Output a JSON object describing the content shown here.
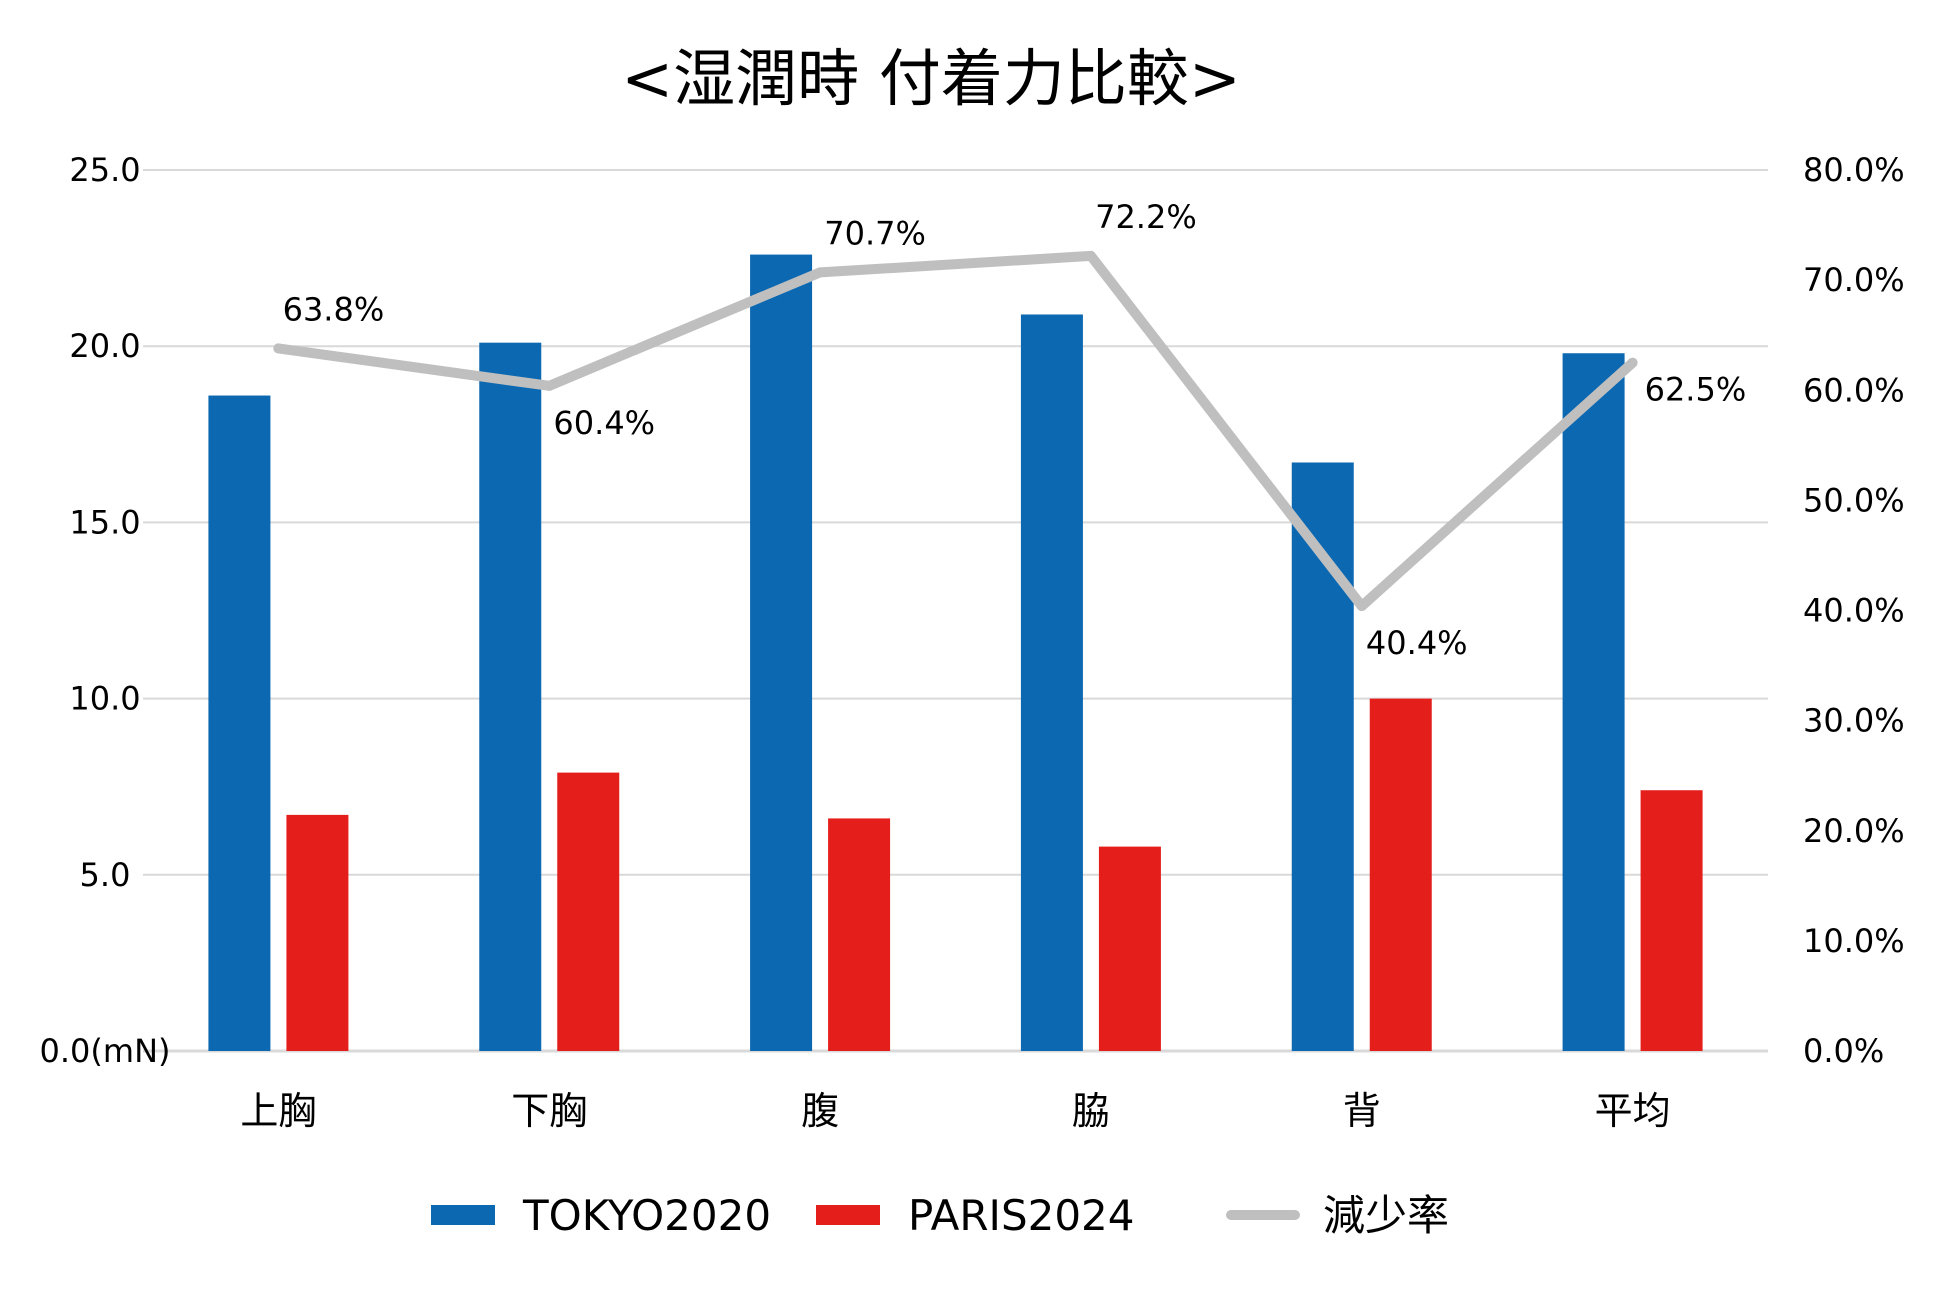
{
  "chart_data": {
    "type": "bar",
    "title": "<湿潤時 付着力比較>",
    "categories": [
      "上胸",
      "下胸",
      "腹",
      "脇",
      "背",
      "平均"
    ],
    "series": [
      {
        "name": "TOKYO2020",
        "kind": "bar",
        "axis": "left",
        "color": "#0B68B1",
        "values": [
          18.6,
          20.1,
          22.6,
          20.9,
          16.7,
          19.8
        ]
      },
      {
        "name": "PARIS2024",
        "kind": "bar",
        "axis": "left",
        "color": "#E41E1B",
        "values": [
          6.7,
          7.9,
          6.6,
          5.8,
          10.0,
          7.4
        ]
      },
      {
        "name": "減少率",
        "kind": "line",
        "axis": "right",
        "color": "#BFBFBF",
        "values": [
          63.8,
          60.4,
          70.7,
          72.2,
          40.4,
          62.5
        ],
        "data_labels": [
          "63.8%",
          "60.4%",
          "70.7%",
          "72.2%",
          "40.4%",
          "62.5%"
        ]
      }
    ],
    "y_left": {
      "ylim": [
        0,
        25
      ],
      "ticks": [
        0,
        5,
        10,
        15,
        20,
        25
      ],
      "tick_labels": [
        "0.0(mN)",
        "5.0",
        "10.0",
        "15.0",
        "20.0",
        "25.0"
      ]
    },
    "y_right": {
      "ylim": [
        0,
        80
      ],
      "ticks": [
        0,
        10,
        20,
        30,
        40,
        50,
        60,
        70,
        80
      ],
      "tick_labels": [
        "0.0%",
        "10.0%",
        "20.0%",
        "30.0%",
        "40.0%",
        "50.0%",
        "60.0%",
        "70.0%",
        "80.0%"
      ]
    },
    "grid": true,
    "legend": "bottom",
    "colors": {
      "grid": "#D9D9D9",
      "axis": "#D9D9D9"
    }
  }
}
